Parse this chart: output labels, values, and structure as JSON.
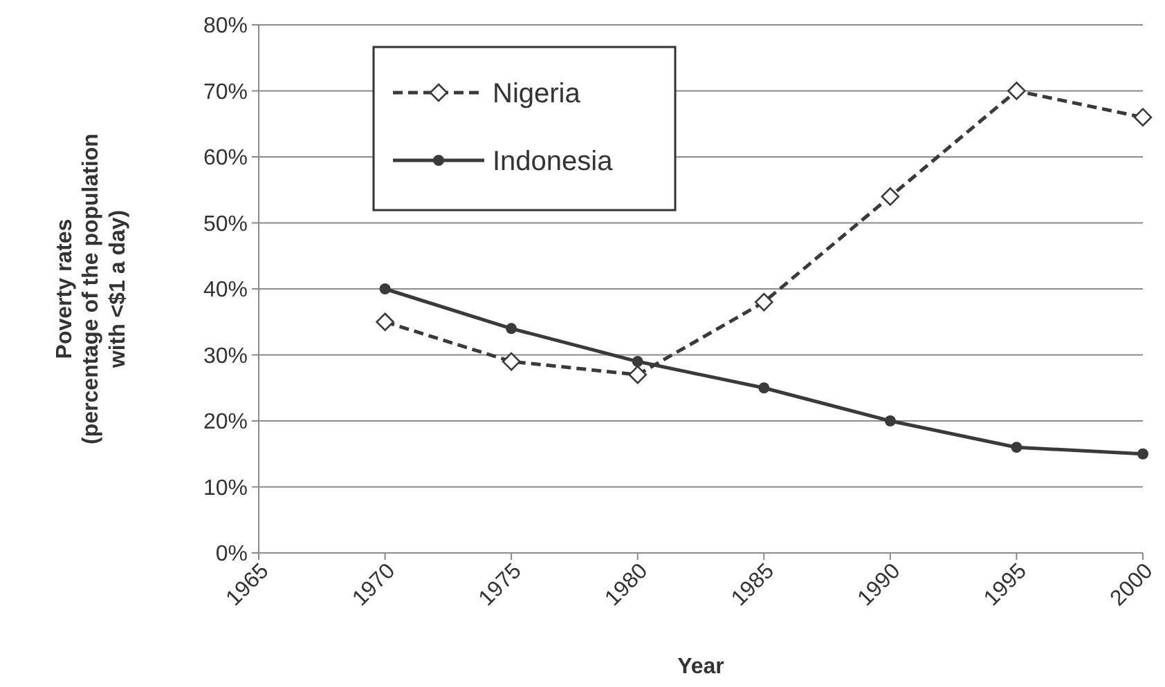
{
  "chart_data": {
    "type": "line",
    "xlabel": "Year",
    "ylabel": "Poverty rates\n(percentage of the population\nwith <$1 a day)",
    "x": [
      1970,
      1975,
      1980,
      1985,
      1990,
      1995,
      2000
    ],
    "series": [
      {
        "name": "Nigeria",
        "color": "#3a3a3a",
        "values": [
          35,
          29,
          27,
          38,
          54,
          70,
          66
        ],
        "marker": "diamond",
        "line_style": "dashed"
      },
      {
        "name": "Indonesia",
        "color": "#3a3a3a",
        "values": [
          40,
          34,
          29,
          25,
          20,
          16,
          15
        ],
        "marker": "circle",
        "line_style": "solid"
      }
    ],
    "xlim": [
      1965,
      2000
    ],
    "xticks": [
      1965,
      1970,
      1975,
      1980,
      1985,
      1990,
      1995,
      2000
    ],
    "ylim": [
      0,
      80
    ],
    "yticks": [
      {
        "value": 0,
        "label": "0%"
      },
      {
        "value": 10,
        "label": "10%"
      },
      {
        "value": 20,
        "label": "20%"
      },
      {
        "value": 30,
        "label": "30%"
      },
      {
        "value": 40,
        "label": "40%"
      },
      {
        "value": 50,
        "label": "50%"
      },
      {
        "value": 60,
        "label": "60%"
      },
      {
        "value": 70,
        "label": "70%"
      },
      {
        "value": 80,
        "label": "80%"
      }
    ],
    "grid": "y",
    "legend": "top left"
  }
}
